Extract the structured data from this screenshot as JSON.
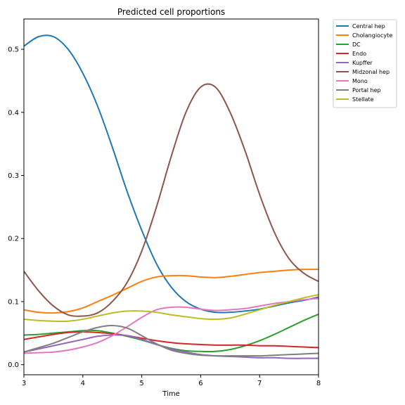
{
  "chart_data": {
    "type": "line",
    "title": "Predicted cell proportions",
    "xlabel": "Time",
    "ylabel": "",
    "xlim": [
      3,
      8
    ],
    "ylim": [
      -0.016,
      0.548
    ],
    "xticks": [
      "3",
      "4",
      "5",
      "6",
      "7",
      "8"
    ],
    "yticks": [
      "0.0",
      "0.1",
      "0.2",
      "0.3",
      "0.4",
      "0.5"
    ],
    "grid": false,
    "legend_position": "outside-top-right",
    "x": [
      3.0,
      3.25,
      3.5,
      3.75,
      4.0,
      4.25,
      4.5,
      4.75,
      5.0,
      5.25,
      5.5,
      5.75,
      6.0,
      6.25,
      6.5,
      6.75,
      7.0,
      7.25,
      7.5,
      7.75,
      8.0
    ],
    "series": [
      {
        "name": "Central hep",
        "color": "#1f77b4",
        "values": [
          0.505,
          0.52,
          0.52,
          0.5,
          0.462,
          0.41,
          0.345,
          0.275,
          0.213,
          0.16,
          0.123,
          0.1,
          0.088,
          0.083,
          0.083,
          0.085,
          0.088,
          0.093,
          0.098,
          0.102,
          0.107
        ]
      },
      {
        "name": "Cholangiocyte",
        "color": "#ff7f0e",
        "values": [
          0.087,
          0.083,
          0.082,
          0.084,
          0.09,
          0.1,
          0.11,
          0.121,
          0.132,
          0.139,
          0.141,
          0.141,
          0.139,
          0.138,
          0.14,
          0.143,
          0.146,
          0.148,
          0.15,
          0.151,
          0.151
        ]
      },
      {
        "name": "DC",
        "color": "#2ca02c",
        "values": [
          0.047,
          0.048,
          0.05,
          0.052,
          0.054,
          0.054,
          0.05,
          0.045,
          0.039,
          0.032,
          0.026,
          0.022,
          0.021,
          0.021,
          0.024,
          0.03,
          0.038,
          0.048,
          0.059,
          0.07,
          0.08
        ]
      },
      {
        "name": "Endo",
        "color": "#d62728",
        "values": [
          0.04,
          0.044,
          0.048,
          0.051,
          0.052,
          0.051,
          0.049,
          0.046,
          0.042,
          0.038,
          0.035,
          0.033,
          0.032,
          0.031,
          0.031,
          0.031,
          0.03,
          0.03,
          0.029,
          0.028,
          0.027
        ]
      },
      {
        "name": "Kupffer",
        "color": "#9467bd",
        "values": [
          0.02,
          0.025,
          0.03,
          0.035,
          0.04,
          0.045,
          0.047,
          0.046,
          0.04,
          0.032,
          0.025,
          0.02,
          0.016,
          0.014,
          0.013,
          0.012,
          0.011,
          0.011,
          0.01,
          0.01,
          0.01
        ]
      },
      {
        "name": "Midzonal hep",
        "color": "#8c564b",
        "values": [
          0.148,
          0.117,
          0.093,
          0.079,
          0.077,
          0.082,
          0.1,
          0.13,
          0.18,
          0.25,
          0.33,
          0.4,
          0.44,
          0.44,
          0.4,
          0.34,
          0.27,
          0.21,
          0.168,
          0.145,
          0.132
        ]
      },
      {
        "name": "Mono",
        "color": "#e377c2",
        "values": [
          0.018,
          0.019,
          0.02,
          0.023,
          0.028,
          0.035,
          0.046,
          0.06,
          0.075,
          0.087,
          0.091,
          0.091,
          0.088,
          0.086,
          0.087,
          0.089,
          0.093,
          0.097,
          0.1,
          0.103,
          0.105
        ]
      },
      {
        "name": "Portal hep",
        "color": "#7f7f7f",
        "values": [
          0.02,
          0.027,
          0.034,
          0.043,
          0.052,
          0.059,
          0.062,
          0.058,
          0.046,
          0.033,
          0.023,
          0.018,
          0.015,
          0.014,
          0.014,
          0.014,
          0.014,
          0.015,
          0.016,
          0.017,
          0.018
        ]
      },
      {
        "name": "Stellate",
        "color": "#bcbd22",
        "values": [
          0.072,
          0.07,
          0.069,
          0.069,
          0.072,
          0.077,
          0.082,
          0.085,
          0.085,
          0.083,
          0.079,
          0.076,
          0.073,
          0.072,
          0.074,
          0.08,
          0.087,
          0.094,
          0.1,
          0.106,
          0.111
        ]
      }
    ]
  }
}
